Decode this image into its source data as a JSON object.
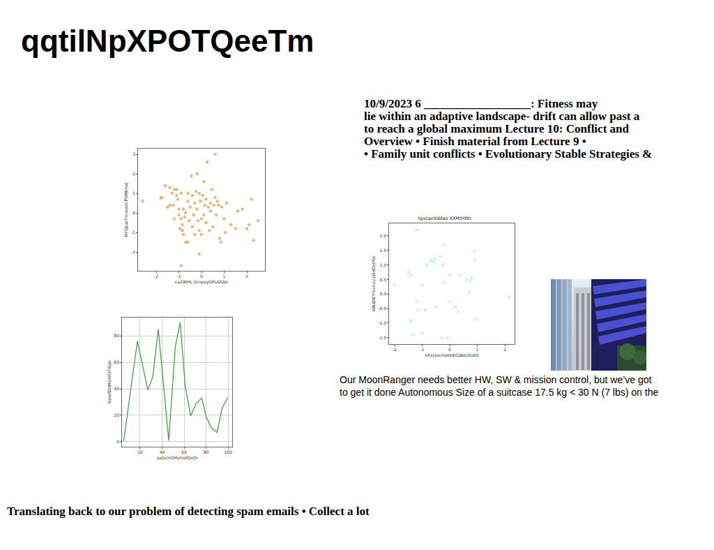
{
  "title": "qqtilNpXPOTQeeTm",
  "text_blocks": {
    "lecture_notes": [
      "10/9/2023 6 __________________: Fitness may",
      "lie within an adaptive landscape- drift can allow past a",
      "to reach a global maximum Lecture 10: Conflict and",
      "Overview • Finish material from Lecture 9 •",
      "• Family unit conflicts • Evolutionary Stable Strategies &"
    ],
    "moonranger": [
      "Our MoonRanger needs better HW, SW & mission control, but we’ve got",
      "to get it done Autonomous Size of a suitcase 17.5 kg < 30 N (7 lbs) on the"
    ],
    "spam": "Translating back to our problem of detecting spam emails • Collect a lot"
  },
  "chart_data": [
    {
      "type": "scatter",
      "x_label": "caZWHL jSrspzyOEUDQJn",
      "y_label": "HYGJuwTmxeaoCPSMKhwj",
      "color": "#dba15e",
      "marker": "circle",
      "grid": false,
      "x": [
        -2.6,
        -1.8,
        -1.75,
        -1.6,
        -1.5,
        -1.4,
        -1.4,
        -1.3,
        -1.25,
        -1.2,
        -1.1,
        -1.1,
        -1.05,
        -1.0,
        -1.0,
        -0.95,
        -0.9,
        -0.9,
        -0.85,
        -0.85,
        -0.8,
        -0.8,
        -0.75,
        -0.7,
        -0.7,
        -0.6,
        -0.6,
        -0.55,
        -0.5,
        -0.45,
        -0.4,
        -0.4,
        -0.35,
        -0.3,
        -0.3,
        -0.25,
        -0.2,
        -0.2,
        -0.15,
        -0.1,
        -0.1,
        -0.05,
        0.0,
        0.0,
        0.05,
        0.1,
        0.1,
        0.15,
        0.2,
        0.2,
        0.25,
        0.3,
        0.35,
        0.4,
        0.4,
        0.45,
        0.5,
        0.55,
        0.6,
        0.6,
        0.65,
        0.7,
        0.75,
        0.8,
        0.85,
        0.9,
        1.0,
        1.1,
        1.3,
        1.5,
        1.6,
        1.8,
        2.0,
        2.1,
        2.2,
        2.3,
        2.5,
        -0.9,
        -0.1,
        -1.2,
        1.05,
        -0.6
      ],
      "values": [
        0.6,
        0.75,
        0.8,
        1.4,
        0.3,
        1.3,
        0.4,
        1.0,
        0.4,
        1.2,
        0.9,
        1.2,
        0.7,
        -0.1,
        0.2,
        -0.8,
        -0.3,
        1.0,
        -0.9,
        -0.6,
        0.2,
        -1.1,
        -0.2,
        0.0,
        -1.5,
        0.6,
        1.0,
        -0.4,
        0.3,
        1.9,
        0.9,
        -0.7,
        -0.1,
        0.5,
        -1.1,
        1.1,
        2.0,
        0.2,
        -0.4,
        1.0,
        -0.9,
        0.6,
        -1.1,
        -0.3,
        0.9,
        1.6,
        -0.1,
        0.4,
        0.7,
        -0.5,
        2.6,
        0.3,
        -0.9,
        0.5,
        0.1,
        1.2,
        -0.7,
        0.4,
        3.0,
        0.8,
        -0.1,
        0.6,
        0.4,
        -1.3,
        -1.5,
        0.3,
        -0.3,
        0.5,
        -0.6,
        -0.8,
        0.1,
        0.2,
        -0.8,
        -0.6,
        0.7,
        -1.4,
        -0.4,
        -2.7,
        -2.1,
        -0.3,
        -1.0,
        -1.5
      ],
      "xlim": [
        -2.8,
        2.8
      ],
      "xticks": [
        -2,
        -1,
        0,
        1,
        2
      ],
      "ylim": [
        -2.96,
        3.29
      ],
      "yticks": [
        -2,
        -1,
        0,
        1,
        2,
        3
      ]
    },
    {
      "type": "scatter",
      "title": "tgxcaeXddao XXMtHWz",
      "x_label": "kKxcJacmekbEGjBoLRUJId",
      "y_label": "WBaDEYhUxUuUWdDotfSb",
      "color": "#7fe8c8",
      "marker": "x",
      "grid": false,
      "x": [
        -2.0,
        -1.5,
        -1.4,
        -1.4,
        -1.35,
        -1.2,
        -1.2,
        -1.15,
        -1.0,
        -1.0,
        -0.9,
        -0.85,
        -0.7,
        -0.6,
        -0.55,
        -0.5,
        -0.35,
        -0.25,
        -0.2,
        -0.2,
        -0.3,
        0.0,
        0.0,
        0.2,
        0.3,
        0.35,
        0.6,
        0.7,
        0.75,
        0.8,
        0.9,
        0.9,
        0.95,
        2.15,
        -0.1
      ],
      "values": [
        0.3,
        0.75,
        0.65,
        -0.9,
        -1.4,
        2.2,
        -0.25,
        -0.55,
        0.3,
        -1.35,
        -0.55,
        1.0,
        1.15,
        1.1,
        1.2,
        -0.45,
        1.3,
        1.0,
        0.4,
        1.7,
        -1.5,
        0.65,
        -0.25,
        -0.45,
        -0.6,
        0.65,
        0.5,
        0.05,
        0.45,
        0.55,
        1.5,
        1.15,
        -0.85,
        -0.1,
        -1.5
      ],
      "xlim": [
        -2.2,
        2.35
      ],
      "xticks": [
        -2,
        -1,
        0,
        1,
        2
      ],
      "ylim": [
        -1.72,
        2.43
      ],
      "yticks": [
        -1.5,
        {
          "value": -1,
          "label": "-1.0"
        },
        -0.5,
        {
          "value": 0,
          "label": "0.0"
        },
        0.5,
        {
          "value": 1,
          "label": "1.0"
        },
        1.5,
        {
          "value": 2,
          "label": "2.0"
        }
      ]
    },
    {
      "type": "line",
      "x_label": "qaDcInOHyhUlQnOr",
      "y_label": "SqlwfDbMoiWOTXLJo",
      "color": "#3c9a3c",
      "line_style": "solid",
      "grid": true,
      "x": [
        5,
        17.5,
        27,
        31.5,
        36.5,
        46,
        52,
        56.5,
        61,
        66,
        71,
        76,
        80.5,
        85,
        90,
        94.5,
        99.5
      ],
      "values": [
        0.5,
        76,
        39,
        49,
        85,
        1,
        72,
        90,
        42,
        19.5,
        29,
        33,
        18,
        10.5,
        7,
        25,
        33
      ],
      "xlim": [
        3.5,
        103.8
      ],
      "xticks": [
        20,
        40,
        60,
        80,
        100
      ],
      "ylim": [
        -3.7,
        93.7
      ],
      "yticks": [
        0,
        20,
        40,
        60,
        80
      ]
    }
  ]
}
